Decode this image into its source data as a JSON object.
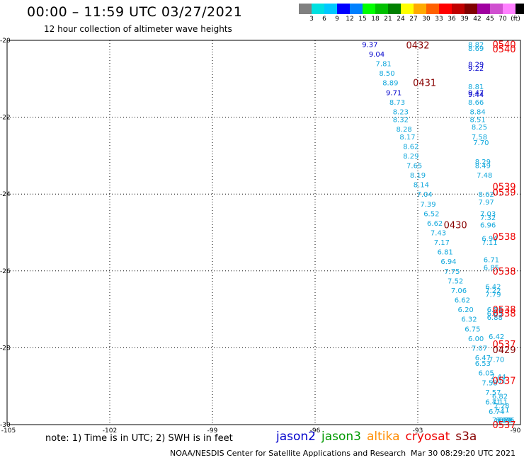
{
  "header": {
    "title": "00:00 – 11:59 UTC 03/27/2021",
    "subtitle": "12 hour collection of altimeter wave heights"
  },
  "legend": {
    "colors": [
      "#808080",
      "#00e0e0",
      "#00c8ff",
      "#0000ff",
      "#0080ff",
      "#00ff00",
      "#00c000",
      "#008000",
      "#ffff00",
      "#ffaa00",
      "#ff6000",
      "#ff0000",
      "#c00000",
      "#800000",
      "#a000a0",
      "#d050d0",
      "#ff80ff",
      "#000000"
    ],
    "labels": [
      "3",
      "6",
      "9",
      "12",
      "15",
      "18",
      "21",
      "24",
      "27",
      "30",
      "33",
      "36",
      "39",
      "42",
      "45",
      "70",
      "(ft)"
    ]
  },
  "axes": {
    "y_ticks": [
      "-20",
      "-22",
      "-24",
      "-26",
      "-28",
      "-30"
    ],
    "x_ticks": [
      "-105",
      "-102",
      "-99",
      "-96",
      "-93",
      "-90"
    ],
    "x_range": [
      -105,
      -90
    ],
    "y_range": [
      -30,
      -20
    ]
  },
  "pass_colors": {
    "cyan": "#12a8dc",
    "blue": "#0000cc",
    "red": "#ee0000",
    "dred": "#880000"
  },
  "wave_points": [
    {
      "lon": -94.4,
      "lat": -20.1,
      "v": "9.37",
      "c": "blue"
    },
    {
      "lon": -94.2,
      "lat": -20.35,
      "v": "9.04",
      "c": "blue"
    },
    {
      "lon": -94.0,
      "lat": -20.6,
      "v": "7.81",
      "c": "cyan"
    },
    {
      "lon": -93.9,
      "lat": -20.85,
      "v": "8.50",
      "c": "cyan"
    },
    {
      "lon": -93.8,
      "lat": -21.1,
      "v": "8.89",
      "c": "cyan"
    },
    {
      "lon": -93.7,
      "lat": -21.35,
      "v": "9.71",
      "c": "blue"
    },
    {
      "lon": -93.6,
      "lat": -21.6,
      "v": "8.73",
      "c": "cyan"
    },
    {
      "lon": -93.5,
      "lat": -21.85,
      "v": "8.23",
      "c": "cyan"
    },
    {
      "lon": -93.5,
      "lat": -22.05,
      "v": "8.32",
      "c": "cyan"
    },
    {
      "lon": -93.4,
      "lat": -22.3,
      "v": "8.28",
      "c": "cyan"
    },
    {
      "lon": -93.3,
      "lat": -22.5,
      "v": "8.17",
      "c": "cyan"
    },
    {
      "lon": -93.2,
      "lat": -22.75,
      "v": "8.62",
      "c": "cyan"
    },
    {
      "lon": -93.2,
      "lat": -23.0,
      "v": "8.29",
      "c": "cyan"
    },
    {
      "lon": -93.1,
      "lat": -23.25,
      "v": "7.65",
      "c": "cyan"
    },
    {
      "lon": -93.0,
      "lat": -23.5,
      "v": "8.19",
      "c": "cyan"
    },
    {
      "lon": -92.9,
      "lat": -23.75,
      "v": "8.14",
      "c": "cyan"
    },
    {
      "lon": -92.8,
      "lat": -24.0,
      "v": "7.04",
      "c": "cyan"
    },
    {
      "lon": -92.7,
      "lat": -24.25,
      "v": "7.39",
      "c": "cyan"
    },
    {
      "lon": -92.6,
      "lat": -24.5,
      "v": "6.52",
      "c": "cyan"
    },
    {
      "lon": -92.5,
      "lat": -24.75,
      "v": "6.62",
      "c": "cyan"
    },
    {
      "lon": -92.4,
      "lat": -25.0,
      "v": "7.43",
      "c": "cyan"
    },
    {
      "lon": -92.3,
      "lat": -25.25,
      "v": "7.17",
      "c": "cyan"
    },
    {
      "lon": -92.2,
      "lat": -25.5,
      "v": "6.81",
      "c": "cyan"
    },
    {
      "lon": -92.1,
      "lat": -25.75,
      "v": "6.94",
      "c": "cyan"
    },
    {
      "lon": -92.0,
      "lat": -26.0,
      "v": "7.75",
      "c": "cyan"
    },
    {
      "lon": -91.9,
      "lat": -26.25,
      "v": "7.52",
      "c": "cyan"
    },
    {
      "lon": -91.8,
      "lat": -26.5,
      "v": "7.06",
      "c": "cyan"
    },
    {
      "lon": -91.7,
      "lat": -26.75,
      "v": "6.62",
      "c": "cyan"
    },
    {
      "lon": -91.6,
      "lat": -27.0,
      "v": "6.20",
      "c": "cyan"
    },
    {
      "lon": -91.5,
      "lat": -27.25,
      "v": "6.32",
      "c": "cyan"
    },
    {
      "lon": -91.4,
      "lat": -27.5,
      "v": "6.75",
      "c": "cyan"
    },
    {
      "lon": -91.3,
      "lat": -27.75,
      "v": "6.00",
      "c": "cyan"
    },
    {
      "lon": -91.2,
      "lat": -28.0,
      "v": "7.07",
      "c": "cyan"
    },
    {
      "lon": -91.1,
      "lat": -28.25,
      "v": "6.47",
      "c": "cyan"
    },
    {
      "lon": -91.1,
      "lat": -28.4,
      "v": "6.53",
      "c": "cyan"
    },
    {
      "lon": -91.0,
      "lat": -28.65,
      "v": "6.05",
      "c": "cyan"
    },
    {
      "lon": -90.9,
      "lat": -28.9,
      "v": "7.58",
      "c": "cyan"
    },
    {
      "lon": -90.8,
      "lat": -29.15,
      "v": "7.57",
      "c": "cyan"
    },
    {
      "lon": -90.8,
      "lat": -29.4,
      "v": "6.41",
      "c": "cyan"
    },
    {
      "lon": -90.7,
      "lat": -29.65,
      "v": "6.74",
      "c": "cyan"
    },
    {
      "lon": -90.6,
      "lat": -29.9,
      "v": "7.06",
      "c": "cyan"
    },
    {
      "lon": -90.5,
      "lat": -30.15,
      "v": "6.29",
      "c": "cyan"
    },
    {
      "lon": -90.4,
      "lat": -30.4,
      "v": "6.76",
      "c": "cyan"
    },
    {
      "lon": -91.3,
      "lat": -20.1,
      "v": "8.82",
      "c": "cyan"
    },
    {
      "lon": -91.3,
      "lat": -20.2,
      "v": "8.69",
      "c": "cyan"
    },
    {
      "lon": -91.3,
      "lat": -20.62,
      "v": "8.29",
      "c": "blue"
    },
    {
      "lon": -91.3,
      "lat": -20.72,
      "v": "9.22",
      "c": "blue"
    },
    {
      "lon": -91.3,
      "lat": -21.2,
      "v": "8.81",
      "c": "cyan"
    },
    {
      "lon": -91.3,
      "lat": -21.35,
      "v": "9.47",
      "c": "blue"
    },
    {
      "lon": -91.3,
      "lat": -21.4,
      "v": "9.44",
      "c": "blue"
    },
    {
      "lon": -91.3,
      "lat": -21.6,
      "v": "8.66",
      "c": "cyan"
    },
    {
      "lon": -91.25,
      "lat": -21.85,
      "v": "8.84",
      "c": "cyan"
    },
    {
      "lon": -91.25,
      "lat": -22.05,
      "v": "8.51",
      "c": "cyan"
    },
    {
      "lon": -91.2,
      "lat": -22.25,
      "v": "8.25",
      "c": "cyan"
    },
    {
      "lon": -91.2,
      "lat": -22.5,
      "v": "7.58",
      "c": "cyan"
    },
    {
      "lon": -91.15,
      "lat": -22.65,
      "v": "7.70",
      "c": "cyan"
    },
    {
      "lon": -91.1,
      "lat": -23.15,
      "v": "8.29",
      "c": "cyan"
    },
    {
      "lon": -91.1,
      "lat": -23.25,
      "v": "8.49",
      "c": "cyan"
    },
    {
      "lon": -91.05,
      "lat": -23.5,
      "v": "7.48",
      "c": "cyan"
    },
    {
      "lon": -91.0,
      "lat": -24.0,
      "v": "8.62",
      "c": "cyan"
    },
    {
      "lon": -91.0,
      "lat": -24.2,
      "v": "7.97",
      "c": "cyan"
    },
    {
      "lon": -90.95,
      "lat": -24.5,
      "v": "7.03",
      "c": "cyan"
    },
    {
      "lon": -90.95,
      "lat": -24.6,
      "v": "7.32",
      "c": "cyan"
    },
    {
      "lon": -90.95,
      "lat": -24.8,
      "v": "6.96",
      "c": "cyan"
    },
    {
      "lon": -90.9,
      "lat": -25.15,
      "v": "6.94",
      "c": "cyan"
    },
    {
      "lon": -90.9,
      "lat": -25.25,
      "v": "7.11",
      "c": "cyan"
    },
    {
      "lon": -90.85,
      "lat": -25.7,
      "v": "6.71",
      "c": "cyan"
    },
    {
      "lon": -90.85,
      "lat": -25.9,
      "v": "6.85",
      "c": "cyan"
    },
    {
      "lon": -90.8,
      "lat": -26.4,
      "v": "6.42",
      "c": "cyan"
    },
    {
      "lon": -90.8,
      "lat": -26.5,
      "v": "7.22",
      "c": "cyan"
    },
    {
      "lon": -90.8,
      "lat": -26.6,
      "v": "7.79",
      "c": "cyan"
    },
    {
      "lon": -90.75,
      "lat": -27.0,
      "v": "6.56",
      "c": "cyan"
    },
    {
      "lon": -90.75,
      "lat": -27.1,
      "v": "6.65",
      "c": "cyan"
    },
    {
      "lon": -90.75,
      "lat": -27.2,
      "v": "6.88",
      "c": "cyan"
    },
    {
      "lon": -90.7,
      "lat": -27.7,
      "v": "6.42",
      "c": "cyan"
    },
    {
      "lon": -90.7,
      "lat": -28.3,
      "v": "7.70",
      "c": "cyan"
    },
    {
      "lon": -90.65,
      "lat": -28.75,
      "v": "7.44",
      "c": "cyan"
    },
    {
      "lon": -90.65,
      "lat": -28.85,
      "v": "7.01",
      "c": "cyan"
    },
    {
      "lon": -90.6,
      "lat": -29.25,
      "v": "6.82",
      "c": "cyan"
    },
    {
      "lon": -90.6,
      "lat": -29.4,
      "v": "7.11",
      "c": "cyan"
    },
    {
      "lon": -90.55,
      "lat": -29.5,
      "v": "7.28",
      "c": "cyan"
    },
    {
      "lon": -90.55,
      "lat": -29.6,
      "v": "7.11",
      "c": "cyan"
    },
    {
      "lon": -90.5,
      "lat": -29.9,
      "v": "6.92",
      "c": "cyan"
    },
    {
      "lon": -90.45,
      "lat": -30.2,
      "v": "6.78",
      "c": "cyan"
    }
  ],
  "time_labels": [
    {
      "lon": -93.0,
      "lat": -20.12,
      "t": "0432",
      "c": "dred"
    },
    {
      "lon": -92.8,
      "lat": -21.1,
      "t": "0431",
      "c": "dred"
    },
    {
      "lon": -91.9,
      "lat": -24.8,
      "t": "0430",
      "c": "dred"
    },
    {
      "lon": -90.1,
      "lat": -28.05,
      "t": "0429",
      "c": "dred"
    },
    {
      "lon": -89.35,
      "lat": -20.1,
      "t": "0540",
      "c": "red"
    },
    {
      "lon": -89.35,
      "lat": -20.22,
      "t": "0540",
      "c": "red"
    },
    {
      "lon": -88.7,
      "lat": -23.8,
      "t": "0539",
      "c": "red"
    },
    {
      "lon": -88.7,
      "lat": -23.95,
      "t": "0539",
      "c": "red"
    },
    {
      "lon": -88.5,
      "lat": -25.1,
      "t": "0538",
      "c": "red"
    },
    {
      "lon": -88.3,
      "lat": -26.0,
      "t": "0538",
      "c": "red"
    },
    {
      "lon": -88.1,
      "lat": -27.0,
      "t": "0538",
      "c": "red"
    },
    {
      "lon": -88.1,
      "lat": -27.1,
      "t": "0538",
      "c": "red"
    },
    {
      "lon": -87.7,
      "lat": -27.9,
      "t": "0537",
      "c": "red"
    },
    {
      "lon": -87.55,
      "lat": -28.85,
      "t": "0537",
      "c": "red"
    },
    {
      "lon": -87.3,
      "lat": -30.0,
      "t": "0537",
      "c": "red"
    }
  ],
  "footer": {
    "note": "note:  1) Time is in UTC;  2) SWH is in feet",
    "satellites": [
      {
        "name": "jason2",
        "color": "#0000cc"
      },
      {
        "name": "jason3",
        "color": "#009900"
      },
      {
        "name": "altika",
        "color": "#ff8c00"
      },
      {
        "name": "cryosat",
        "color": "#ee0000"
      },
      {
        "name": "s3a",
        "color": "#880000"
      }
    ],
    "credit": "NOAA/NESDIS Center for Satellite Applications and Research",
    "generated": "Mar 30 08:29:20 UTC 2021"
  }
}
